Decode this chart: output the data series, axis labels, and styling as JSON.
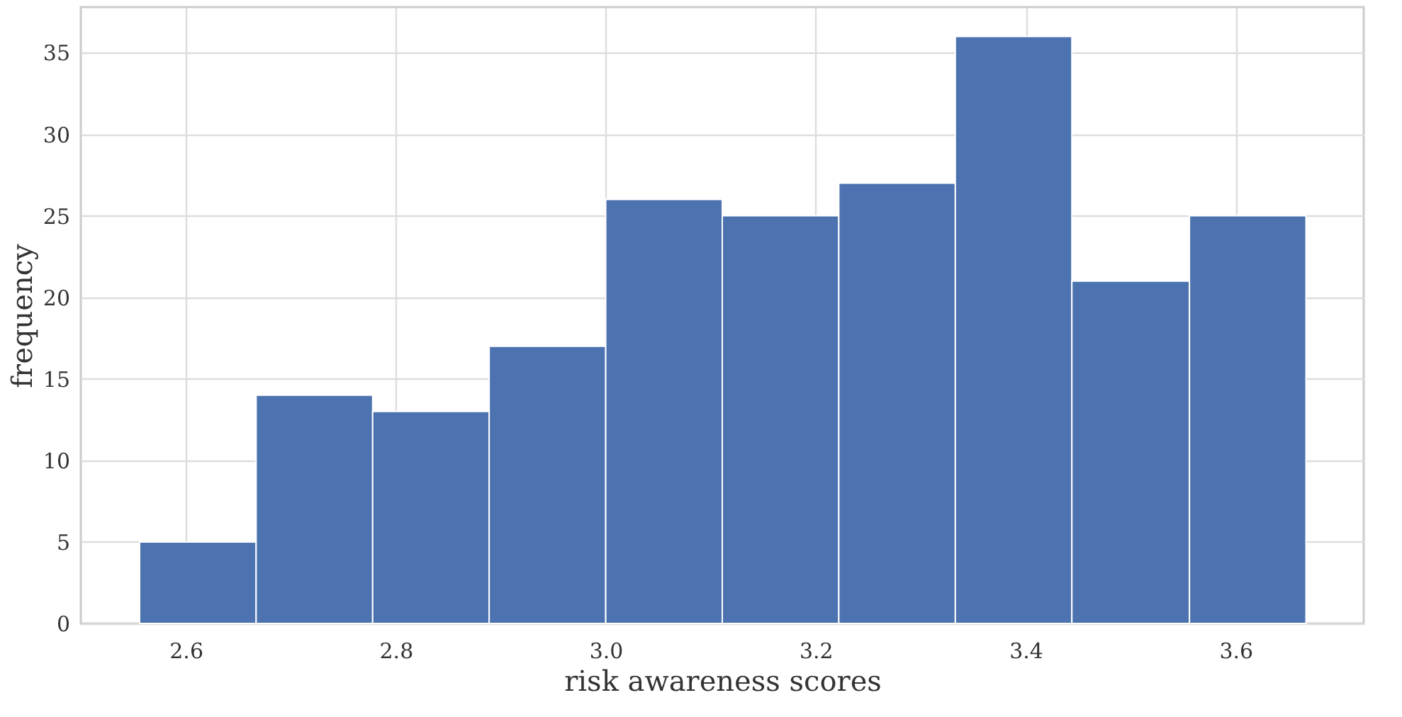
{
  "chart_data": {
    "type": "histogram",
    "xlabel": "risk awareness scores",
    "ylabel": "frequency",
    "bins": [
      2.556,
      2.667,
      2.778,
      2.889,
      3.0,
      3.111,
      3.222,
      3.333,
      3.444,
      3.556,
      3.667
    ],
    "values": [
      5,
      14,
      13,
      17,
      26,
      25,
      27,
      36,
      21,
      25
    ],
    "color": "#4c72b0",
    "xlim": [
      2.5,
      3.722
    ],
    "xticks": [
      2.6,
      2.8,
      {
        "value": 3.0,
        "label": "3.0"
      },
      3.2,
      3.4,
      3.6
    ],
    "ylim": [
      0,
      37.8
    ],
    "yticks": [
      0,
      5,
      10,
      15,
      20,
      25,
      30,
      35
    ],
    "grid": true
  }
}
